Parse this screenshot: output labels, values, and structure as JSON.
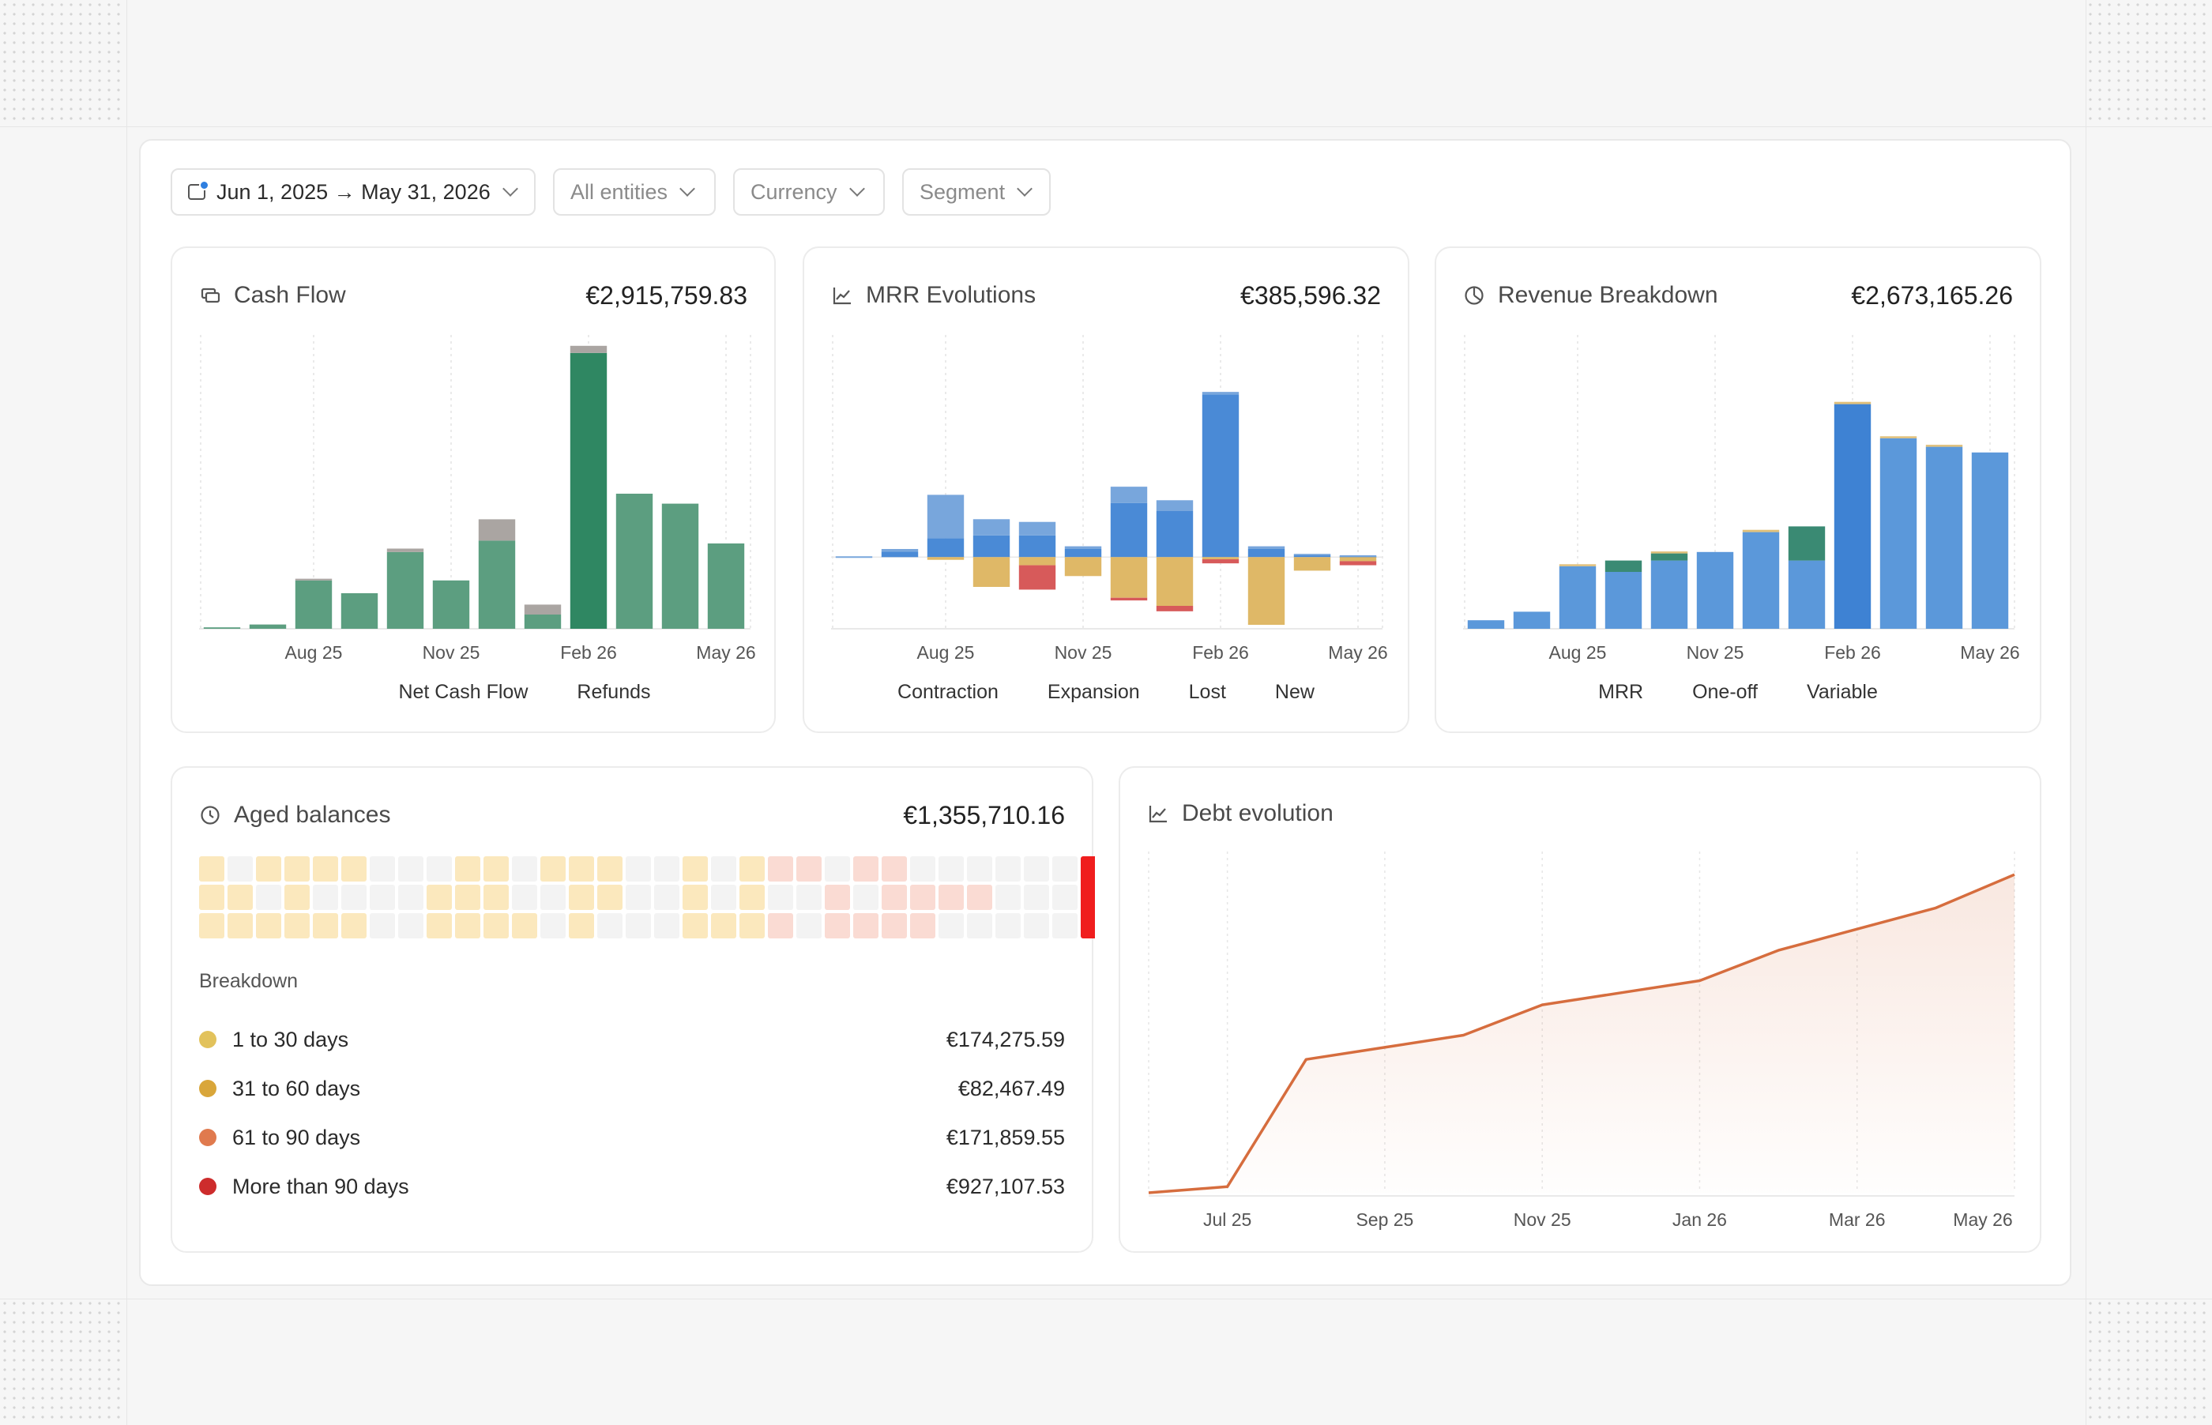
{
  "filters": {
    "date_range": "Jun 1, 2025 → May 31, 2026",
    "entities": "All entities",
    "currency": "Currency",
    "segment": "Segment"
  },
  "icons": {
    "calendar": "calendar-icon",
    "chevron": "chevron-down-icon",
    "cash_flow": "transfer-icon",
    "mrr": "line-chart-icon",
    "revenue": "pie-chart-icon",
    "aged": "clock-icon",
    "debt": "line-chart-icon"
  },
  "cash_flow": {
    "title": "Cash Flow",
    "total": "€2,915,759.83",
    "legend": [
      "Net Cash Flow",
      "Refunds"
    ],
    "colors": {
      "net": "#5c9e80",
      "net_highlight": "#2f8762",
      "refunds": "#aaa5a2"
    }
  },
  "mrr": {
    "title": "MRR Evolutions",
    "total": "€385,596.32",
    "legend": [
      "Contraction",
      "Expansion",
      "Lost",
      "New"
    ],
    "colors": {
      "new": "#4a8ad6",
      "expansion": "#78a6dc",
      "contraction": "#dfb867",
      "lost": "#d75a5a"
    }
  },
  "revenue": {
    "title": "Revenue Breakdown",
    "total": "€2,673,165.26",
    "legend": [
      "MRR",
      "One-off",
      "Variable"
    ],
    "colors": {
      "mrr": "#5b98da",
      "mrr_highlight": "#3e82d3",
      "oneoff": "#3a8a73",
      "variable": "#e0c07a"
    }
  },
  "aged": {
    "title": "Aged balances",
    "total": "€1,355,710.16",
    "breakdown_label": "Breakdown",
    "rows": [
      {
        "label": "1 to 30 days",
        "value": "€174,275.59",
        "color": "#e2c25b"
      },
      {
        "label": "31 to 60 days",
        "value": "€82,467.49",
        "color": "#d9a63a"
      },
      {
        "label": "61 to 90 days",
        "value": "€171,859.55",
        "color": "#e07a4e"
      },
      {
        "label": "More than 90 days",
        "value": "€927,107.53",
        "color": "#cd2c2c"
      }
    ],
    "colors": {
      "empty": "#f3f3f3",
      "yellow": "#fbe8bd",
      "pink": "#fadbd3",
      "red": "#f01e1e"
    },
    "grid": [
      "yeyyyyeeeyyeyyyeeyeyppeppeeeeeeR",
      "yyeyeeeeyyyeeyyeeyeyeepeppppeeeR",
      "yyyyyyeeyyyyeyeeeyyypeppppeeeeeR"
    ]
  },
  "debt": {
    "title": "Debt evolution",
    "line_color": "#d66d3e"
  },
  "chart_data": [
    {
      "type": "bar",
      "title": "Cash Flow",
      "categories": [
        "Jun 25",
        "Jul 25",
        "Aug 25",
        "Sep 25",
        "Oct 25",
        "Nov 25",
        "Dec 25",
        "Jan 26",
        "Feb 26",
        "Mar 26",
        "Apr 26",
        "May 26"
      ],
      "tick_labels": [
        "Aug 25",
        "Nov 25",
        "Feb 26",
        "May 26"
      ],
      "series": [
        {
          "name": "Net Cash Flow",
          "values": [
            0.5,
            1.5,
            17,
            12.5,
            27,
            17,
            31,
            5,
            97,
            47.5,
            44,
            30
          ]
        },
        {
          "name": "Refunds",
          "values": [
            0,
            0,
            0.6,
            0,
            1.2,
            0,
            7.5,
            3.5,
            2.5,
            0,
            0,
            0
          ]
        }
      ],
      "ylim": [
        0,
        100
      ],
      "legend": "bottom"
    },
    {
      "type": "bar",
      "title": "MRR Evolutions",
      "categories": [
        "Jun 25",
        "Jul 25",
        "Aug 25",
        "Sep 25",
        "Oct 25",
        "Nov 25",
        "Dec 25",
        "Jan 26",
        "Feb 26",
        "Mar 26",
        "Apr 26",
        "May 26"
      ],
      "tick_labels": [
        "Aug 25",
        "Nov 25",
        "Feb 26",
        "May 26"
      ],
      "series": [
        {
          "name": "New",
          "values": [
            0,
            2,
            7,
            8,
            8,
            3,
            20,
            17,
            60,
            3,
            0.8,
            0.4
          ]
        },
        {
          "name": "Expansion",
          "values": [
            0.3,
            1,
            16,
            6,
            5,
            1,
            6,
            4,
            1,
            1,
            0.4,
            0.3
          ]
        },
        {
          "name": "Contraction",
          "values": [
            0,
            0,
            -1,
            -11,
            -3,
            -7,
            -15,
            -18,
            -0.8,
            -25,
            -5,
            -1.5
          ]
        },
        {
          "name": "Lost",
          "values": [
            0,
            0,
            0,
            0,
            -9,
            0,
            -1,
            -2,
            -1.5,
            0,
            0,
            -1.5
          ]
        }
      ],
      "ylim": [
        -25,
        80
      ],
      "legend": "bottom"
    },
    {
      "type": "bar",
      "title": "Revenue Breakdown",
      "categories": [
        "Jun 25",
        "Jul 25",
        "Aug 25",
        "Sep 25",
        "Oct 25",
        "Nov 25",
        "Dec 25",
        "Jan 26",
        "Feb 26",
        "Mar 26",
        "Apr 26",
        "May 26"
      ],
      "tick_labels": [
        "Aug 25",
        "Nov 25",
        "Feb 26",
        "May 26"
      ],
      "series": [
        {
          "name": "MRR",
          "values": [
            3,
            6,
            22,
            20,
            24,
            27,
            34,
            24,
            79,
            67,
            64,
            62
          ]
        },
        {
          "name": "One-off",
          "values": [
            0,
            0,
            0,
            4,
            2.5,
            0,
            0,
            12,
            0,
            0,
            0,
            0
          ]
        },
        {
          "name": "Variable",
          "values": [
            0,
            0,
            0.4,
            0,
            0.4,
            0,
            0.8,
            0,
            0.8,
            0.6,
            0.6,
            0
          ]
        }
      ],
      "ylim": [
        0,
        100
      ],
      "legend": "bottom"
    },
    {
      "type": "area",
      "title": "Debt evolution",
      "x": [
        "Jun 25",
        "Jul 25",
        "Aug 25",
        "Sep 25",
        "Oct 25",
        "Nov 25",
        "Dec 25",
        "Jan 26",
        "Feb 26",
        "Mar 26",
        "Apr 26",
        "May 26"
      ],
      "tick_labels": [
        "Jul 25",
        "Sep 25",
        "Nov 25",
        "Jan 26",
        "Mar 26",
        "May 26"
      ],
      "series": [
        {
          "values": [
            0,
            2,
            44,
            48,
            52,
            62,
            66,
            70,
            80,
            87,
            94,
            105
          ]
        }
      ],
      "ylim": [
        0,
        110
      ],
      "grid": true
    }
  ]
}
